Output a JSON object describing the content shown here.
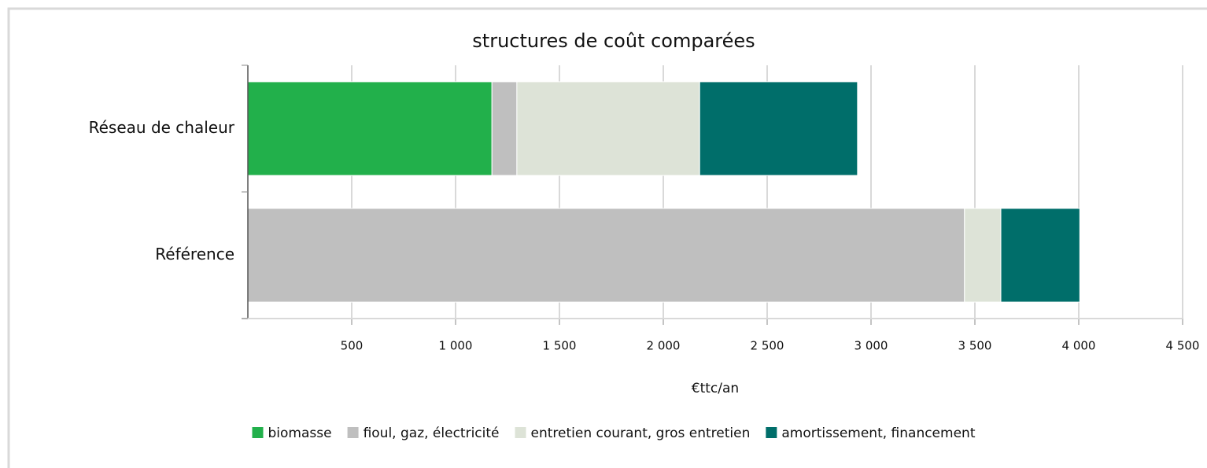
{
  "chart_data": {
    "type": "stacked_barh",
    "title": "structures de coût comparées",
    "categories": [
      "Réseau de chaleur",
      "Référence"
    ],
    "series": [
      {
        "name": "biomasse",
        "color": "#22b04b",
        "values": [
          1175,
          0
        ]
      },
      {
        "name": "fioul, gaz, électricité",
        "color": "#bfbfbf",
        "values": [
          120,
          3450
        ]
      },
      {
        "name": "entretien courant, gros entretien",
        "color": "#dde3d7",
        "values": [
          880,
          175
        ]
      },
      {
        "name": "amortissement, financement",
        "color": "#006e6a",
        "values": [
          760,
          380
        ]
      }
    ],
    "xlabel": "€ttc/an",
    "xlim": [
      0,
      4500
    ],
    "xticks": [
      500,
      {
        "value": 1000,
        "label": "1 000"
      },
      {
        "value": 1500,
        "label": "1 500"
      },
      {
        "value": 2000,
        "label": "2 000"
      },
      {
        "value": 2500,
        "label": "2 500"
      },
      {
        "value": 3000,
        "label": "3 000"
      },
      {
        "value": 3500,
        "label": "3 500"
      },
      {
        "value": 4000,
        "label": "4 000"
      },
      {
        "value": 4500,
        "label": "4 500"
      }
    ],
    "grid": true,
    "legend": "bottom"
  }
}
